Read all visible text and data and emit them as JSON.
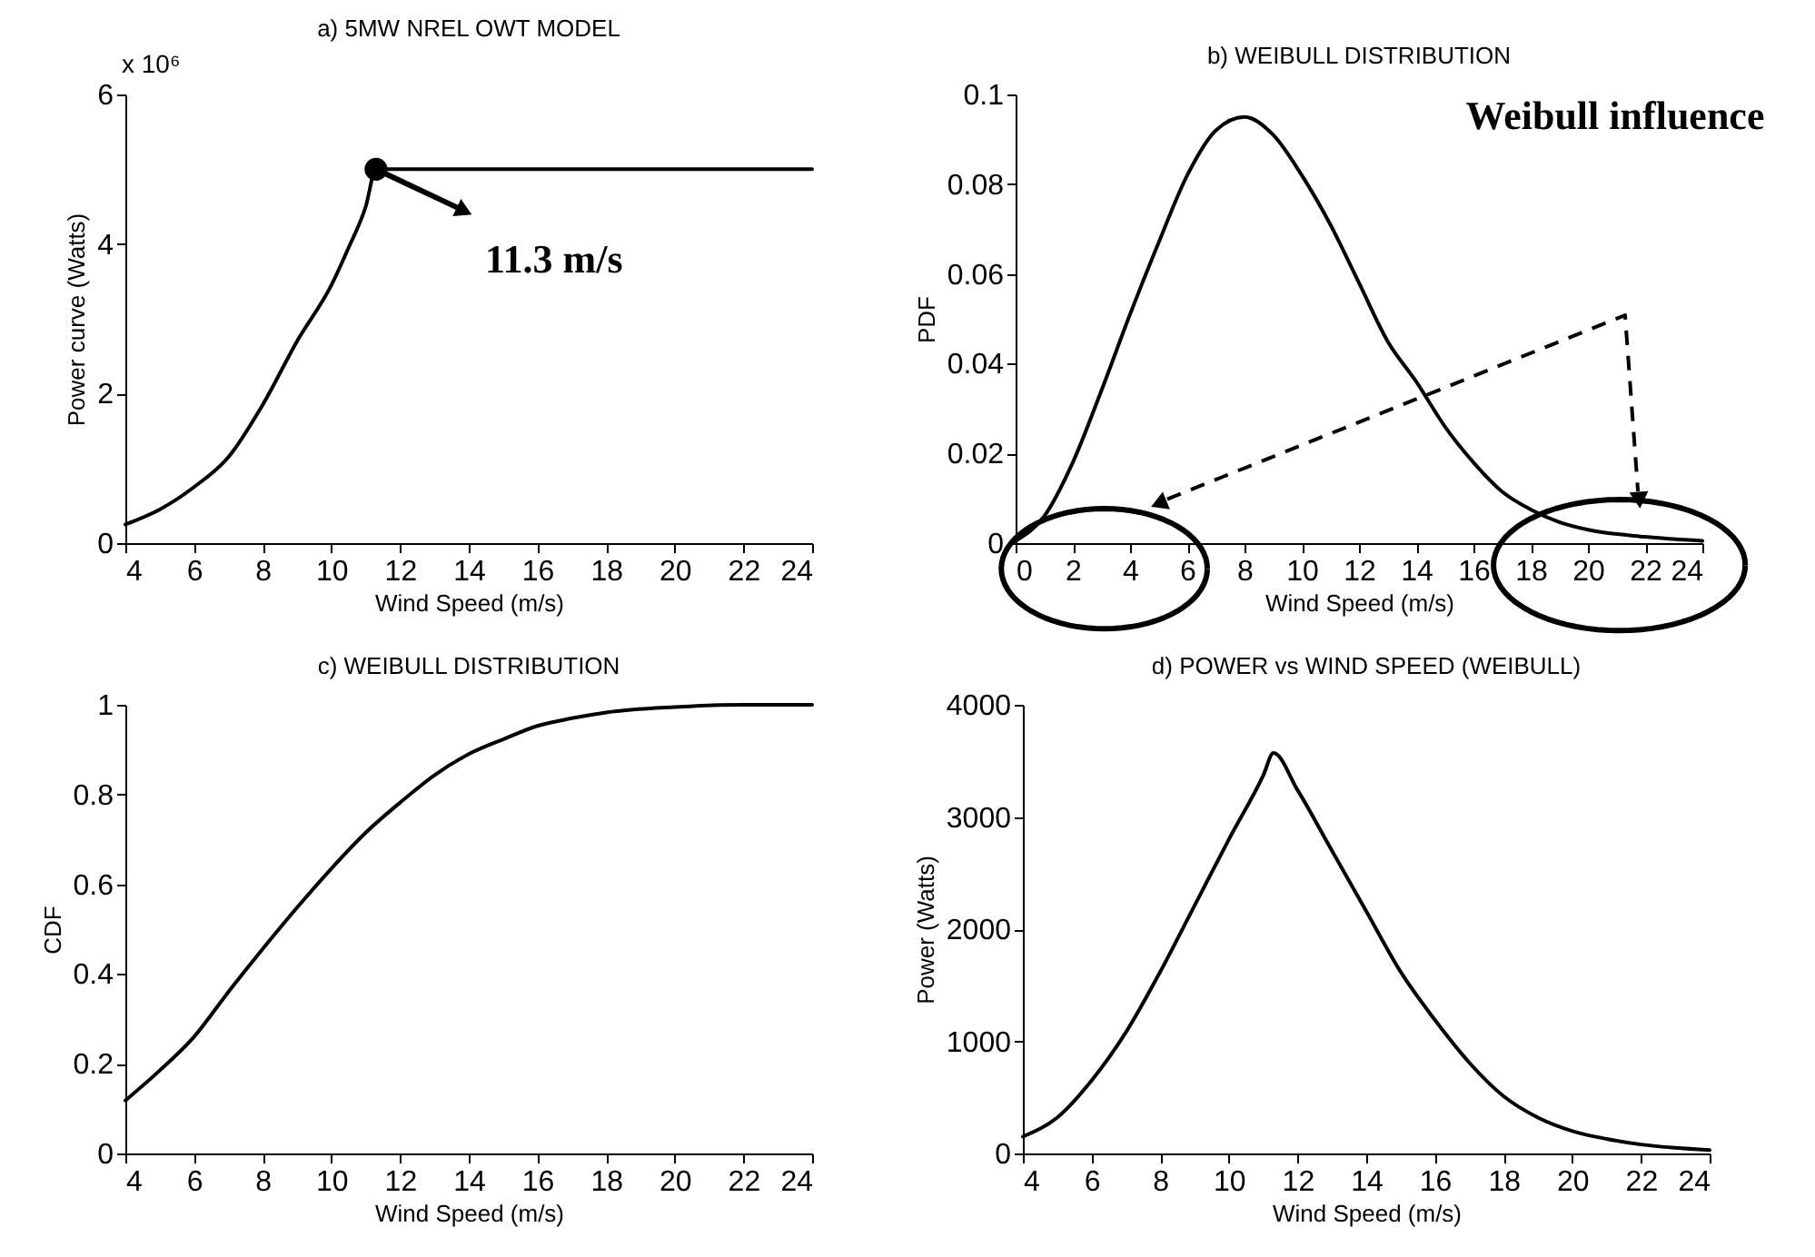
{
  "chart_data": [
    {
      "type": "line",
      "title": "a) 5MW NREL OWT MODEL",
      "xlabel": "Wind Speed (m/s)",
      "ylabel": "Power curve (Watts)",
      "xlim": [
        4,
        24
      ],
      "xticks": [
        4,
        6,
        8,
        10,
        12,
        14,
        16,
        18,
        20,
        22,
        24
      ],
      "ylim": [
        0,
        6
      ],
      "yticks": [
        0,
        2,
        4,
        6
      ],
      "x": [
        4,
        5,
        6,
        7,
        8,
        9,
        10,
        10.5,
        11,
        11.3,
        24
      ],
      "series": [
        {
          "color": "#000000",
          "values": [
            0.25,
            0.45,
            0.75,
            1.15,
            1.85,
            2.7,
            3.45,
            3.95,
            4.5,
            5.0,
            5.0
          ]
        },
        {
          "type": "scatter",
          "color": "#000000",
          "x": [
            11.3
          ],
          "values": [
            5.0
          ]
        }
      ],
      "annotations": [
        "x 10⁶",
        {
          "text": "11.3 m/s",
          "x": 11.3,
          "y": 5.0
        }
      ]
    },
    {
      "type": "line",
      "title": "b) WEIBULL DISTRIBUTION",
      "xlabel": "Wind Speed (m/s)",
      "ylabel": "PDF",
      "xlim": [
        0,
        24
      ],
      "xticks": [
        0,
        2,
        4,
        6,
        8,
        10,
        12,
        14,
        16,
        18,
        20,
        22,
        24
      ],
      "ylim": [
        0,
        0.1
      ],
      "yticks": [
        0,
        0.02,
        0.04,
        0.06,
        0.08,
        0.1
      ],
      "x": [
        0,
        1,
        2,
        3,
        4,
        5,
        6,
        7,
        8,
        9,
        10,
        11,
        12,
        13,
        14,
        15,
        16,
        17,
        18,
        19,
        20,
        22,
        24
      ],
      "series": [
        {
          "color": "#000000",
          "values": [
            0.0005,
            0.006,
            0.018,
            0.034,
            0.051,
            0.067,
            0.082,
            0.092,
            0.095,
            0.091,
            0.082,
            0.071,
            0.058,
            0.045,
            0.036,
            0.026,
            0.018,
            0.0115,
            0.0075,
            0.0047,
            0.003,
            0.0014,
            0.0005
          ]
        }
      ],
      "annotations": [
        "Weibull influence"
      ]
    },
    {
      "type": "line",
      "title": "c) WEIBULL DISTRIBUTION",
      "xlabel": "Wind Speed (m/s)",
      "ylabel": "CDF",
      "xlim": [
        4,
        24
      ],
      "xticks": [
        4,
        6,
        8,
        10,
        12,
        14,
        16,
        18,
        20,
        22,
        24
      ],
      "ylim": [
        0,
        1
      ],
      "yticks": [
        0,
        0.2,
        0.4,
        0.6,
        0.8,
        1
      ],
      "x": [
        4,
        5,
        6,
        7,
        8,
        9,
        10,
        11,
        12,
        13,
        14,
        15,
        16,
        17,
        18,
        20,
        22,
        24
      ],
      "series": [
        {
          "color": "#000000",
          "values": [
            0.118,
            0.185,
            0.26,
            0.36,
            0.456,
            0.548,
            0.635,
            0.715,
            0.782,
            0.843,
            0.89,
            0.923,
            0.953,
            0.97,
            0.983,
            0.995,
            1.0,
            1.0
          ]
        }
      ]
    },
    {
      "type": "line",
      "title": "d) POWER vs WIND SPEED (WEIBULL)",
      "xlabel": "Wind Speed (m/s)",
      "ylabel": "Power (Watts)",
      "xlim": [
        4,
        24
      ],
      "xticks": [
        4,
        6,
        8,
        10,
        12,
        14,
        16,
        18,
        20,
        22,
        24
      ],
      "ylim": [
        0,
        4000
      ],
      "yticks": [
        0,
        1000,
        2000,
        3000,
        4000
      ],
      "x": [
        4,
        5,
        6,
        7,
        8,
        9,
        10,
        11,
        11.3,
        12,
        13,
        14,
        15,
        16,
        17,
        18,
        19,
        20,
        21,
        22,
        23,
        24
      ],
      "series": [
        {
          "color": "#000000",
          "values": [
            150,
            320,
            650,
            1080,
            1620,
            2210,
            2800,
            3370,
            3570,
            3240,
            2700,
            2160,
            1620,
            1190,
            810,
            510,
            320,
            200,
            130,
            80,
            50,
            30
          ]
        }
      ]
    }
  ]
}
